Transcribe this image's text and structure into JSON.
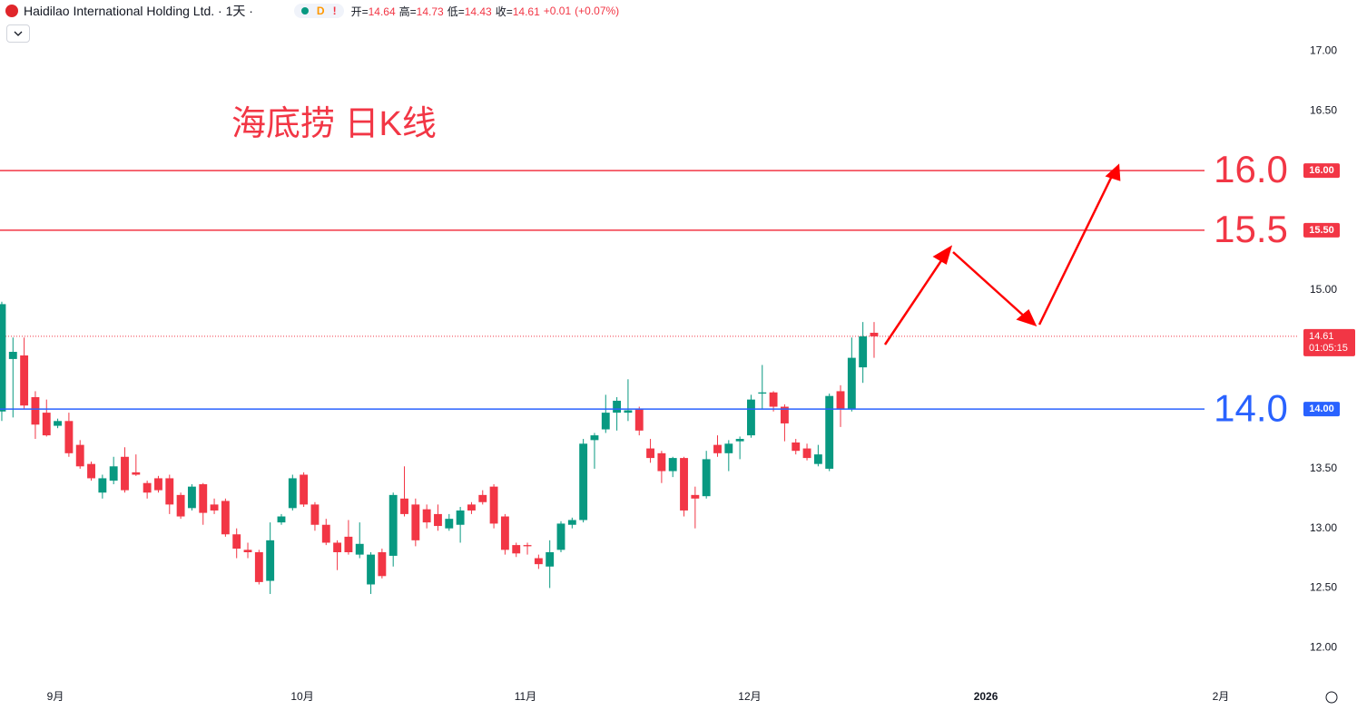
{
  "header": {
    "symbol": "Haidilao International Holding Ltd. · 1天 ·",
    "badge": "D",
    "alert": "!",
    "items": [
      {
        "label": "开=",
        "value": 14.64
      },
      {
        "label": "高=",
        "value": 14.73
      },
      {
        "label": "低=",
        "value": 14.43
      },
      {
        "label": "收=",
        "value": 14.61
      }
    ],
    "change": {
      "value": 0.01,
      "label": "+0.01"
    },
    "change_pct": {
      "value": 0.07,
      "label": "(+0.07%)"
    }
  },
  "chart_data": {
    "type": "candlestick",
    "annotation": "海底捞 日K线",
    "up_color": "#089981",
    "down_color": "#f23645",
    "categories": [
      null,
      null,
      null,
      null,
      null,
      null,
      null,
      null,
      null,
      null,
      null,
      null,
      null,
      null,
      null,
      null,
      null,
      null,
      null,
      null,
      null,
      null,
      null,
      null,
      null,
      null,
      null,
      null,
      null,
      null,
      null,
      null,
      null,
      null,
      null,
      null,
      null,
      null,
      null,
      null,
      null,
      null,
      null,
      null,
      null,
      null,
      null,
      null,
      null,
      null,
      null,
      null,
      null,
      null,
      null,
      null,
      null,
      null,
      null,
      null,
      null,
      null,
      null,
      null,
      null,
      null,
      null,
      null,
      null,
      null,
      null,
      null,
      null,
      null,
      null,
      null,
      null,
      null,
      null
    ],
    "open": [
      13.98,
      14.42,
      14.45,
      14.1,
      13.97,
      13.86,
      13.9,
      13.7,
      13.54,
      13.3,
      13.4,
      13.6,
      13.47,
      13.38,
      13.42,
      13.42,
      13.28,
      13.17,
      13.37,
      13.2,
      13.23,
      12.95,
      12.82,
      12.8,
      12.56,
      13.05,
      13.17,
      13.45,
      13.2,
      13.03,
      12.88,
      12.93,
      12.78,
      12.53,
      12.8,
      12.77,
      13.25,
      13.2,
      13.16,
      13.12,
      13.0,
      13.03,
      13.2,
      13.28,
      13.35,
      13.1,
      12.86,
      12.86,
      12.75,
      12.68,
      12.82,
      13.03,
      13.07,
      13.74,
      13.83,
      13.97,
      13.97,
      14.0,
      13.67,
      13.63,
      13.48,
      13.59,
      13.28,
      13.27,
      13.7,
      13.63,
      13.73,
      13.78,
      14.13,
      14.14,
      14.02,
      13.72,
      13.67,
      13.54,
      13.5,
      14.15,
      14.0,
      14.35,
      14.64
    ],
    "high": [
      14.9,
      14.6,
      14.6,
      14.15,
      14.08,
      13.92,
      13.97,
      13.74,
      13.56,
      13.45,
      13.6,
      13.68,
      13.62,
      13.4,
      13.44,
      13.45,
      13.3,
      13.37,
      13.38,
      13.25,
      13.25,
      13.0,
      12.88,
      12.82,
      13.05,
      13.12,
      13.45,
      13.47,
      13.22,
      13.08,
      12.9,
      13.07,
      13.05,
      12.8,
      12.83,
      13.3,
      13.52,
      13.25,
      13.2,
      13.2,
      13.12,
      13.18,
      13.22,
      13.32,
      13.37,
      13.12,
      12.88,
      12.88,
      12.78,
      12.9,
      13.06,
      13.09,
      13.75,
      13.8,
      14.12,
      14.1,
      14.25,
      14.02,
      13.75,
      13.65,
      13.6,
      13.6,
      13.35,
      13.65,
      13.78,
      13.74,
      13.77,
      14.12,
      14.37,
      14.15,
      14.04,
      13.75,
      13.71,
      13.7,
      14.13,
      14.2,
      14.6,
      14.73,
      14.73
    ],
    "low": [
      13.9,
      13.93,
      14.0,
      13.75,
      13.77,
      13.84,
      13.6,
      13.5,
      13.4,
      13.25,
      13.37,
      13.3,
      13.44,
      13.25,
      13.3,
      13.12,
      13.08,
      13.15,
      13.03,
      13.12,
      12.93,
      12.75,
      12.75,
      12.53,
      12.45,
      13.03,
      13.15,
      13.18,
      12.98,
      12.86,
      12.65,
      12.78,
      12.75,
      12.45,
      12.58,
      12.68,
      13.1,
      12.85,
      13.0,
      12.98,
      12.98,
      12.88,
      13.12,
      13.2,
      13.0,
      12.78,
      12.76,
      12.78,
      12.66,
      12.5,
      12.8,
      13.0,
      13.05,
      13.5,
      13.8,
      13.82,
      13.9,
      13.78,
      13.55,
      13.38,
      13.43,
      13.1,
      13.0,
      13.25,
      13.6,
      13.48,
      13.58,
      13.76,
      14.0,
      13.98,
      13.73,
      13.62,
      13.57,
      13.52,
      13.48,
      13.85,
      13.98,
      14.22,
      14.43
    ],
    "close": [
      14.88,
      14.48,
      14.03,
      13.87,
      13.78,
      13.9,
      13.63,
      13.52,
      13.42,
      13.42,
      13.52,
      13.32,
      13.45,
      13.3,
      13.32,
      13.2,
      13.1,
      13.35,
      13.13,
      13.15,
      12.95,
      12.83,
      12.8,
      12.55,
      12.9,
      13.1,
      13.42,
      13.2,
      13.03,
      12.88,
      12.8,
      12.8,
      12.87,
      12.78,
      12.6,
      13.28,
      13.12,
      12.9,
      13.05,
      13.02,
      13.08,
      13.15,
      13.15,
      13.22,
      13.04,
      12.82,
      12.79,
      12.85,
      12.7,
      12.8,
      13.04,
      13.07,
      13.71,
      13.78,
      13.97,
      14.07,
      13.99,
      13.82,
      13.59,
      13.48,
      13.59,
      13.15,
      13.25,
      13.58,
      13.63,
      13.71,
      13.75,
      14.08,
      14.14,
      14.02,
      13.88,
      13.65,
      13.59,
      13.62,
      14.11,
      14.0,
      14.43,
      14.61,
      14.61
    ],
    "xlim": [
      -0.16,
      115.5
    ],
    "xticks": [
      {
        "value": 4.79,
        "label": "9月"
      },
      {
        "value": 26.87,
        "label": "10月"
      },
      {
        "value": 46.83,
        "label": "11月"
      },
      {
        "value": 66.88,
        "label": "12月"
      },
      {
        "value": 87.99,
        "label": "2026"
      },
      {
        "value": 109.0,
        "label": "2月"
      }
    ],
    "ylim": [
      11.69,
      17.43
    ],
    "yticks": [
      {
        "value": 17,
        "label": "17.00"
      },
      {
        "value": 16.5,
        "label": "16.50"
      },
      {
        "value": 15,
        "label": "15.00"
      },
      {
        "value": 13.5,
        "label": "13.50"
      },
      {
        "value": 13,
        "label": "13.00"
      },
      {
        "value": 12.5,
        "label": "12.50"
      },
      {
        "value": 12,
        "label": "12.00"
      }
    ],
    "levels": [
      {
        "value": 16,
        "label": "16.0",
        "axis_label": "16.00",
        "color": "#f23645"
      },
      {
        "value": 15.5,
        "label": "15.5",
        "axis_label": "15.50",
        "color": "#f23645"
      },
      {
        "value": 14,
        "label": "14.0",
        "axis_label": "14.00",
        "color": "#2962ff"
      }
    ],
    "last_price": 14.61,
    "countdown": "01:05:15"
  }
}
